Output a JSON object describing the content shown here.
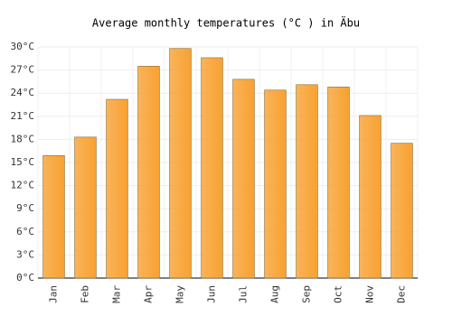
{
  "chart_data": {
    "type": "bar",
    "title": "Average monthly temperatures (°C ) in Äbu",
    "categories": [
      "Jan",
      "Feb",
      "Mar",
      "Apr",
      "May",
      "Jun",
      "Jul",
      "Aug",
      "Sep",
      "Oct",
      "Nov",
      "Dec"
    ],
    "values": [
      15.9,
      18.3,
      23.2,
      27.5,
      29.8,
      28.6,
      25.8,
      24.4,
      25.1,
      24.8,
      21.1,
      17.5
    ],
    "color": "#f8a131",
    "ylim": [
      0,
      30
    ],
    "yticks": [
      {
        "value": 0,
        "label": "0°C"
      },
      {
        "value": 3,
        "label": "3°C"
      },
      {
        "value": 6,
        "label": "6°C"
      },
      {
        "value": 9,
        "label": "9°C"
      },
      {
        "value": 12,
        "label": "12°C"
      },
      {
        "value": 15,
        "label": "15°C"
      },
      {
        "value": 18,
        "label": "18°C"
      },
      {
        "value": 21,
        "label": "21°C"
      },
      {
        "value": 24,
        "label": "24°C"
      },
      {
        "value": 27,
        "label": "27°C"
      },
      {
        "value": 30,
        "label": "30°C"
      }
    ],
    "grid": true
  }
}
